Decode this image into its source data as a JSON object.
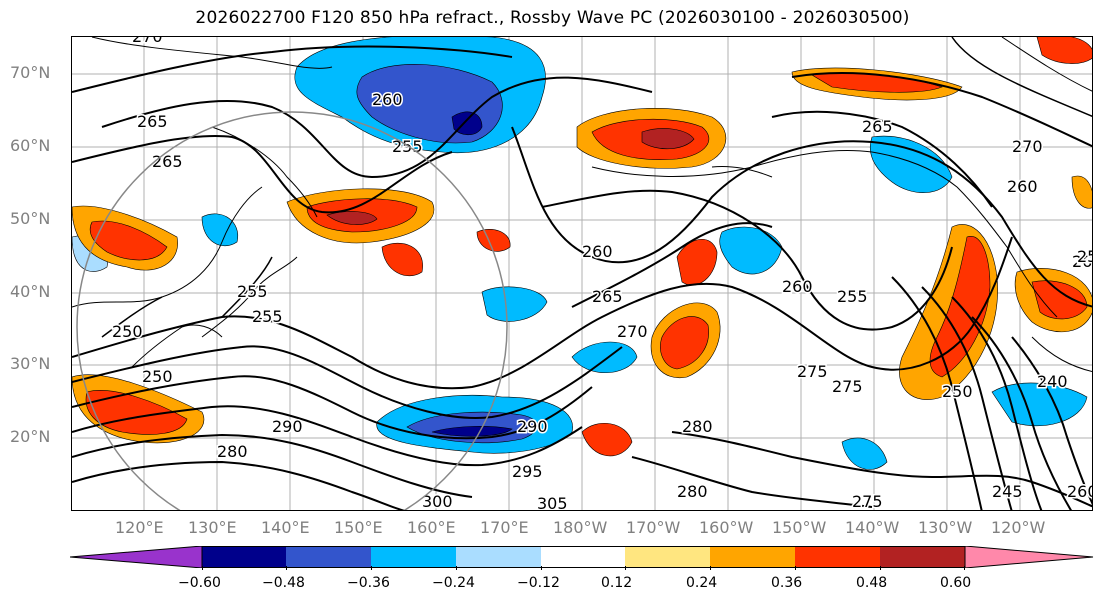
{
  "title": "2026022700 F120 850 hPa refract., Rossby Wave PC (2026030100 - 2026030500)",
  "map": {
    "latitude_labels": [
      "70°N",
      "60°N",
      "50°N",
      "40°N",
      "30°N",
      "20°N"
    ],
    "longitude_labels": [
      "120°E",
      "130°E",
      "140°E",
      "150°E",
      "160°E",
      "170°E",
      "180°W",
      "170°W",
      "160°W",
      "150°W",
      "140°W",
      "130°W",
      "120°W"
    ],
    "contour_labels": [
      "270",
      "265",
      "260",
      "255",
      "265",
      "255",
      "250",
      "255",
      "250",
      "260",
      "280",
      "290",
      "300",
      "280",
      "290",
      "295",
      "305",
      "275",
      "270",
      "265",
      "255",
      "260",
      "275",
      "280",
      "275",
      "265",
      "270",
      "260",
      "250",
      "240",
      "245",
      "260",
      "265",
      "255"
    ],
    "shading_colors": {
      "neg_extreme": "#9933cc",
      "neg_060": "#00008b",
      "neg_048": "#3355cc",
      "neg_036": "#00bbff",
      "neg_024": "#aaddff",
      "neutral": "#ffffff",
      "pos_012": "#ffe680",
      "pos_024": "#ffa500",
      "pos_036": "#ff3300",
      "pos_048": "#b22222",
      "pos_extreme": "#ff88aa"
    }
  },
  "colorbar": {
    "tick_labels": [
      "−0.60",
      "−0.48",
      "−0.36",
      "−0.24",
      "−0.12",
      "0.12",
      "0.24",
      "0.36",
      "0.48",
      "0.60"
    ],
    "colors": [
      "#9933cc",
      "#00008b",
      "#3355cc",
      "#00bbff",
      "#aaddff",
      "#ffffff",
      "#ffe680",
      "#ffa500",
      "#ff3300",
      "#b22222",
      "#ff88aa"
    ]
  }
}
